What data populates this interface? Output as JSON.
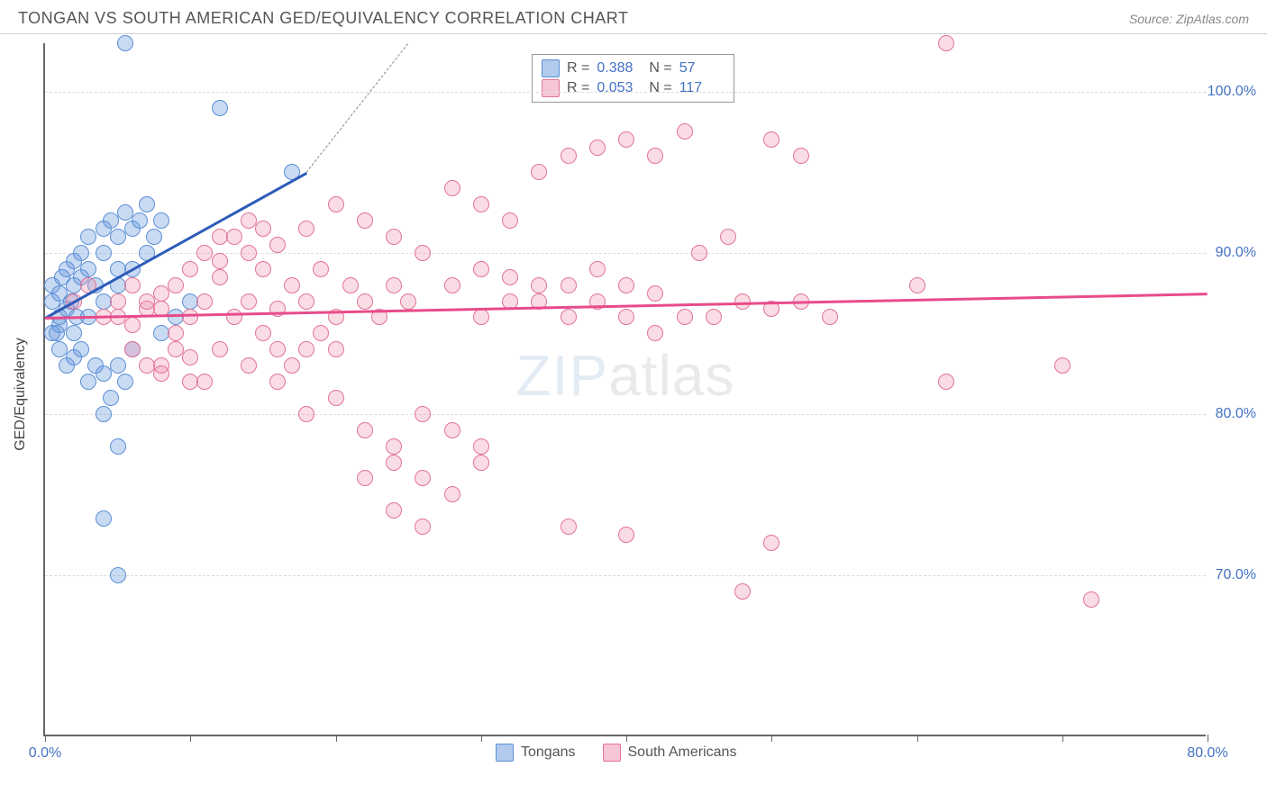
{
  "header": {
    "title": "TONGAN VS SOUTH AMERICAN GED/EQUIVALENCY CORRELATION CHART",
    "source": "Source: ZipAtlas.com"
  },
  "chart": {
    "type": "scatter",
    "y_axis_title": "GED/Equivalency",
    "xlim": [
      0,
      80
    ],
    "ylim": [
      60,
      103
    ],
    "x_ticks": [
      0,
      10,
      20,
      30,
      40,
      50,
      60,
      70,
      80
    ],
    "x_tick_labels": {
      "0": "0.0%",
      "80": "80.0%"
    },
    "y_ticks": [
      70,
      80,
      90,
      100
    ],
    "y_tick_labels": {
      "70": "70.0%",
      "80": "80.0%",
      "90": "90.0%",
      "100": "100.0%"
    },
    "grid_color": "#dddddd",
    "background_color": "#ffffff",
    "colors": {
      "blue_fill": "rgba(100,150,220,0.35)",
      "blue_stroke": "#5b8fd6",
      "blue_line": "#2e5cb8",
      "pink_fill": "rgba(240,140,170,0.3)",
      "pink_stroke": "#e27396",
      "pink_line": "#e84b8a",
      "axis_text": "#4472c4"
    },
    "marker_size": 18,
    "series": [
      {
        "name": "Tongans",
        "color_key": "blue",
        "R": "0.388",
        "N": "57",
        "trend": {
          "x1": 0,
          "y1": 86,
          "x2": 18,
          "y2": 95,
          "dash_to_x": 25,
          "dash_to_y": 103
        },
        "points": [
          [
            0.5,
            87
          ],
          [
            0.5,
            88
          ],
          [
            0.8,
            85
          ],
          [
            1,
            86
          ],
          [
            1,
            87.5
          ],
          [
            1.2,
            88.5
          ],
          [
            1.5,
            86.5
          ],
          [
            1.5,
            89
          ],
          [
            1.8,
            87
          ],
          [
            2,
            88
          ],
          [
            2,
            89.5
          ],
          [
            2.2,
            86
          ],
          [
            2.5,
            88.5
          ],
          [
            2.5,
            90
          ],
          [
            3,
            89
          ],
          [
            3,
            91
          ],
          [
            3.5,
            88
          ],
          [
            4,
            90
          ],
          [
            4,
            91.5
          ],
          [
            4.5,
            92
          ],
          [
            5,
            89
          ],
          [
            5,
            91
          ],
          [
            5.5,
            92.5
          ],
          [
            6,
            91.5
          ],
          [
            6.5,
            92
          ],
          [
            7,
            93
          ],
          [
            7.5,
            91
          ],
          [
            8,
            92
          ],
          [
            5.5,
            103
          ],
          [
            12,
            99
          ],
          [
            1,
            84
          ],
          [
            1.5,
            83
          ],
          [
            2,
            83.5
          ],
          [
            2.5,
            84
          ],
          [
            3,
            82
          ],
          [
            3.5,
            83
          ],
          [
            4,
            82.5
          ],
          [
            4.5,
            81
          ],
          [
            5,
            83
          ],
          [
            5.5,
            82
          ],
          [
            6,
            84
          ],
          [
            4,
            80
          ],
          [
            5,
            78
          ],
          [
            4,
            73.5
          ],
          [
            5,
            70
          ],
          [
            0.5,
            85
          ],
          [
            1,
            85.5
          ],
          [
            2,
            85
          ],
          [
            3,
            86
          ],
          [
            4,
            87
          ],
          [
            5,
            88
          ],
          [
            6,
            89
          ],
          [
            7,
            90
          ],
          [
            9,
            86
          ],
          [
            10,
            87
          ],
          [
            8,
            85
          ],
          [
            17,
            95
          ]
        ]
      },
      {
        "name": "South Americans",
        "color_key": "pink",
        "R": "0.053",
        "N": "117",
        "trend": {
          "x1": 0,
          "y1": 86,
          "x2": 80,
          "y2": 87.5
        },
        "points": [
          [
            2,
            87
          ],
          [
            3,
            88
          ],
          [
            4,
            86
          ],
          [
            5,
            87
          ],
          [
            6,
            88
          ],
          [
            7,
            86.5
          ],
          [
            8,
            87.5
          ],
          [
            9,
            88
          ],
          [
            10,
            86
          ],
          [
            11,
            87
          ],
          [
            12,
            88.5
          ],
          [
            13,
            86
          ],
          [
            14,
            87
          ],
          [
            15,
            89
          ],
          [
            16,
            86.5
          ],
          [
            17,
            88
          ],
          [
            18,
            87
          ],
          [
            19,
            89
          ],
          [
            20,
            86
          ],
          [
            21,
            88
          ],
          [
            22,
            87
          ],
          [
            23,
            86
          ],
          [
            24,
            88
          ],
          [
            25,
            87
          ],
          [
            12,
            91
          ],
          [
            14,
            92
          ],
          [
            16,
            90.5
          ],
          [
            18,
            91.5
          ],
          [
            20,
            93
          ],
          [
            22,
            92
          ],
          [
            24,
            91
          ],
          [
            26,
            90
          ],
          [
            28,
            94
          ],
          [
            30,
            93
          ],
          [
            32,
            92
          ],
          [
            34,
            95
          ],
          [
            36,
            96
          ],
          [
            38,
            96.5
          ],
          [
            40,
            97
          ],
          [
            42,
            96
          ],
          [
            44,
            97.5
          ],
          [
            8,
            83
          ],
          [
            10,
            82
          ],
          [
            12,
            84
          ],
          [
            14,
            83
          ],
          [
            16,
            82
          ],
          [
            18,
            80
          ],
          [
            20,
            81
          ],
          [
            22,
            79
          ],
          [
            24,
            78
          ],
          [
            26,
            80
          ],
          [
            28,
            79
          ],
          [
            30,
            78
          ],
          [
            22,
            76
          ],
          [
            24,
            77
          ],
          [
            26,
            76
          ],
          [
            28,
            75
          ],
          [
            30,
            77
          ],
          [
            24,
            74
          ],
          [
            26,
            73
          ],
          [
            36,
            73
          ],
          [
            40,
            72.5
          ],
          [
            50,
            72
          ],
          [
            52,
            87
          ],
          [
            54,
            86
          ],
          [
            46,
            86
          ],
          [
            48,
            87
          ],
          [
            50,
            86.5
          ],
          [
            45,
            90
          ],
          [
            47,
            91
          ],
          [
            62,
            82
          ],
          [
            60,
            88
          ],
          [
            62,
            103
          ],
          [
            70,
            83
          ],
          [
            72,
            68.5
          ],
          [
            48,
            69
          ],
          [
            50,
            97
          ],
          [
            52,
            96
          ],
          [
            42,
            85
          ],
          [
            44,
            86
          ],
          [
            30,
            86
          ],
          [
            32,
            87
          ],
          [
            34,
            88
          ],
          [
            36,
            86
          ],
          [
            38,
            87
          ],
          [
            40,
            86
          ],
          [
            15,
            85
          ],
          [
            16,
            84
          ],
          [
            17,
            83
          ],
          [
            18,
            84
          ],
          [
            19,
            85
          ],
          [
            20,
            84
          ],
          [
            10,
            89
          ],
          [
            11,
            90
          ],
          [
            12,
            89.5
          ],
          [
            13,
            91
          ],
          [
            14,
            90
          ],
          [
            15,
            91.5
          ],
          [
            6,
            84
          ],
          [
            7,
            83
          ],
          [
            8,
            82.5
          ],
          [
            9,
            84
          ],
          [
            10,
            83.5
          ],
          [
            11,
            82
          ],
          [
            5,
            86
          ],
          [
            6,
            85.5
          ],
          [
            7,
            87
          ],
          [
            8,
            86.5
          ],
          [
            9,
            85
          ],
          [
            28,
            88
          ],
          [
            30,
            89
          ],
          [
            32,
            88.5
          ],
          [
            34,
            87
          ],
          [
            36,
            88
          ],
          [
            38,
            89
          ],
          [
            40,
            88
          ],
          [
            42,
            87.5
          ]
        ]
      }
    ],
    "legend_top": {
      "rows": [
        {
          "swatch": "blue",
          "r_label": "R =",
          "r_val": "0.388",
          "n_label": "N =",
          "n_val": "57"
        },
        {
          "swatch": "pink",
          "r_label": "R =",
          "r_val": "0.053",
          "n_label": "N =",
          "n_val": "117"
        }
      ]
    },
    "legend_bottom": [
      {
        "swatch": "blue",
        "label": "Tongans"
      },
      {
        "swatch": "pink",
        "label": "South Americans"
      }
    ],
    "watermark": {
      "part1": "ZIP",
      "part2": "atlas"
    }
  }
}
